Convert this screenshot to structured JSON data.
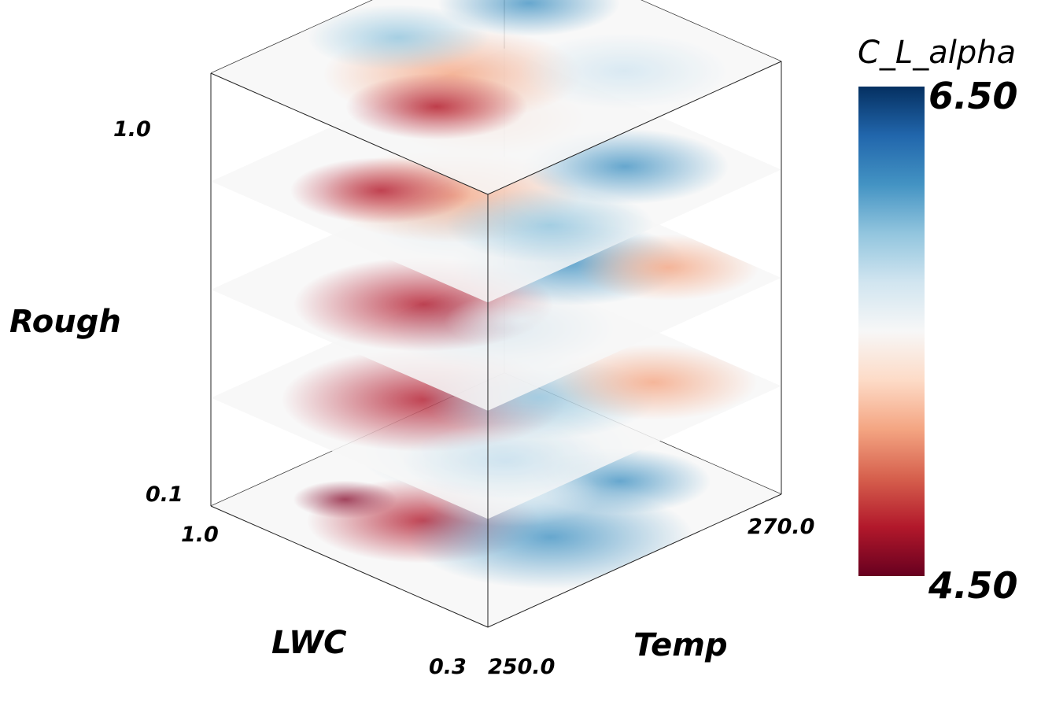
{
  "chart_data": {
    "type": "heatmap",
    "variant": "3d-stacked-slices",
    "axes": {
      "x": {
        "label": "LWC",
        "range": [
          0.3,
          1.0
        ],
        "ticks": [
          "0.3",
          "1.0"
        ]
      },
      "y": {
        "label": "Temp",
        "range": [
          250.0,
          270.0
        ],
        "ticks": [
          "250.0",
          "270.0"
        ]
      },
      "z": {
        "label": "Rough",
        "range": [
          0.1,
          1.0
        ],
        "ticks": [
          "0.1",
          "1.0"
        ]
      }
    },
    "colorbar": {
      "title": "C_L_alpha",
      "min": 4.5,
      "max": 6.5,
      "min_label": "4.50",
      "max_label": "6.50",
      "colormap": "diverging red-white-blue (RdBu)",
      "colors": [
        "#67001f",
        "#b2182b",
        "#d6604d",
        "#f4a582",
        "#fddbc7",
        "#f7f7f7",
        "#d1e5f0",
        "#92c5de",
        "#4393c3",
        "#2166ac",
        "#053061"
      ]
    },
    "slices": [
      {
        "rough": 0.1,
        "summary": "mostly blue (higher C_L_alpha), red patch at low Temp / high LWC"
      },
      {
        "rough": 0.325,
        "summary": "mixed red and blue"
      },
      {
        "rough": 0.55,
        "summary": "mixed red and blue"
      },
      {
        "rough": 0.775,
        "summary": "mixed red and blue"
      },
      {
        "rough": 1.0,
        "summary": "mostly light with red and blue bands"
      }
    ],
    "grid": false,
    "legend_placement": "right"
  }
}
